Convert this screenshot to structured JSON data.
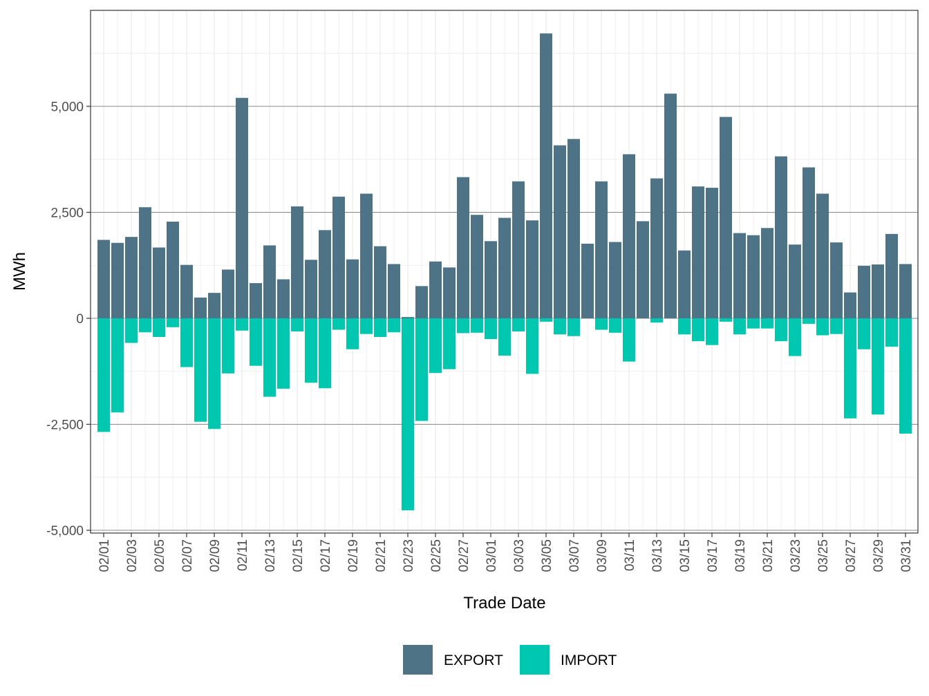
{
  "chart_data": {
    "type": "bar",
    "stacked": true,
    "title": "",
    "xlabel": "Trade Date",
    "ylabel": "MWh",
    "ylim": [
      -5000,
      7500
    ],
    "yticks": [
      -5000,
      -2500,
      0,
      2500,
      5000
    ],
    "ytick_labels": [
      "-5,000",
      "-2,500",
      "0",
      "2,500",
      "5,000"
    ],
    "grid": true,
    "legend_position": "bottom",
    "categories": [
      "02/01",
      "02/02",
      "02/03",
      "02/04",
      "02/05",
      "02/06",
      "02/07",
      "02/08",
      "02/09",
      "02/10",
      "02/11",
      "02/12",
      "02/13",
      "02/14",
      "02/15",
      "02/16",
      "02/17",
      "02/18",
      "02/19",
      "02/20",
      "02/21",
      "02/22",
      "02/23",
      "02/24",
      "02/25",
      "02/26",
      "02/27",
      "02/28",
      "03/01",
      "03/02",
      "03/03",
      "03/04",
      "03/05",
      "03/06",
      "03/07",
      "03/08",
      "03/09",
      "03/10",
      "03/11",
      "03/12",
      "03/13",
      "03/14",
      "03/15",
      "03/16",
      "03/17",
      "03/18",
      "03/19",
      "03/20",
      "03/21",
      "03/22",
      "03/23",
      "03/24",
      "03/25",
      "03/26",
      "03/27",
      "03/28",
      "03/29",
      "03/30",
      "03/31"
    ],
    "tick_labels": [
      "02/01",
      "02/03",
      "02/05",
      "02/07",
      "02/09",
      "02/11",
      "02/13",
      "02/15",
      "02/17",
      "02/19",
      "02/21",
      "02/23",
      "02/25",
      "02/27",
      "03/01",
      "03/03",
      "03/05",
      "03/07",
      "03/09",
      "03/11",
      "03/13",
      "03/15",
      "03/17",
      "03/19",
      "03/21",
      "03/23",
      "03/25",
      "03/27",
      "03/29",
      "03/31"
    ],
    "series": [
      {
        "name": "EXPORT",
        "color": "#4f7386",
        "values": [
          1850,
          1780,
          1920,
          2620,
          1670,
          2280,
          1260,
          490,
          600,
          1150,
          5200,
          830,
          1720,
          920,
          2640,
          1380,
          2080,
          2870,
          1390,
          2940,
          1700,
          1280,
          30,
          760,
          1340,
          1200,
          3330,
          2440,
          1820,
          2370,
          3230,
          2310,
          6720,
          4080,
          4230,
          1760,
          3230,
          1800,
          3870,
          2290,
          3300,
          5300,
          1600,
          3110,
          3080,
          4750,
          2010,
          1960,
          2130,
          3820,
          1740,
          3560,
          2940,
          1790,
          610,
          1240,
          1270,
          1990,
          1280
        ]
      },
      {
        "name": "IMPORT",
        "color": "#00c8b0",
        "values": [
          -2680,
          -2220,
          -580,
          -330,
          -440,
          -210,
          -1150,
          -2440,
          -2610,
          -1300,
          -290,
          -1120,
          -1850,
          -1660,
          -310,
          -1520,
          -1650,
          -270,
          -730,
          -370,
          -440,
          -330,
          -4530,
          -2420,
          -1290,
          -1200,
          -350,
          -340,
          -490,
          -880,
          -310,
          -1310,
          -80,
          -380,
          -420,
          0,
          -270,
          -340,
          -1020,
          0,
          -100,
          0,
          -380,
          -540,
          -630,
          -80,
          -380,
          -240,
          -240,
          -540,
          -890,
          -130,
          -400,
          -370,
          -2360,
          -730,
          -2270,
          -670,
          -2720
        ]
      }
    ]
  }
}
